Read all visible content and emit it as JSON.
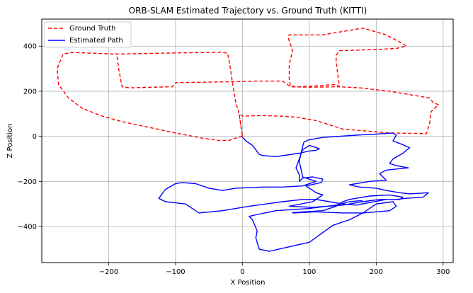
{
  "chart_data": {
    "type": "line",
    "title": "ORB-SLAM Estimated Trajectory vs. Ground Truth (KITTI)",
    "xlabel": "X Position",
    "ylabel": "Z Position",
    "xlim": [
      -300,
      315
    ],
    "ylim": [
      -560,
      520
    ],
    "xticks": [
      -200,
      -100,
      0,
      100,
      200,
      300
    ],
    "yticks": [
      -400,
      -200,
      0,
      200,
      400
    ],
    "grid": true,
    "legend_position": "top-left",
    "series": [
      {
        "name": "Ground Truth",
        "color": "#ff0000",
        "style": "dashed",
        "points": [
          [
            0,
            0
          ],
          [
            -7,
            -5
          ],
          [
            -20,
            -18
          ],
          [
            -35,
            -18
          ],
          [
            -60,
            -8
          ],
          [
            -100,
            15
          ],
          [
            -140,
            40
          ],
          [
            -180,
            65
          ],
          [
            -210,
            90
          ],
          [
            -240,
            125
          ],
          [
            -260,
            170
          ],
          [
            -275,
            230
          ],
          [
            -277,
            300
          ],
          [
            -268,
            365
          ],
          [
            -255,
            372
          ],
          [
            -190,
            365
          ],
          [
            -100,
            370
          ],
          [
            -30,
            373
          ],
          [
            -22,
            368
          ],
          [
            -18,
            300
          ],
          [
            -15,
            240
          ],
          [
            -10,
            150
          ],
          [
            -5,
            100
          ],
          [
            0,
            0
          ],
          [
            -5,
            100
          ],
          [
            0,
            90
          ],
          [
            30,
            92
          ],
          [
            55,
            90
          ],
          [
            80,
            85
          ],
          [
            110,
            70
          ],
          [
            150,
            32
          ],
          [
            220,
            15
          ],
          [
            275,
            12
          ],
          [
            280,
            60
          ],
          [
            282,
            110
          ],
          [
            293,
            140
          ],
          [
            285,
            150
          ],
          [
            280,
            170
          ],
          [
            220,
            200
          ],
          [
            175,
            215
          ],
          [
            145,
            220
          ],
          [
            140,
            230
          ],
          [
            100,
            222
          ],
          [
            85,
            220
          ],
          [
            72,
            222
          ],
          [
            70,
            250
          ],
          [
            70,
            320
          ],
          [
            75,
            380
          ],
          [
            68,
            440
          ],
          [
            70,
            450
          ],
          [
            120,
            450
          ],
          [
            180,
            480
          ],
          [
            215,
            450
          ],
          [
            240,
            410
          ],
          [
            245,
            400
          ],
          [
            230,
            390
          ],
          [
            200,
            385
          ],
          [
            145,
            380
          ],
          [
            140,
            360
          ],
          [
            140,
            330
          ],
          [
            145,
            220
          ],
          [
            100,
            218
          ],
          [
            72,
            220
          ],
          [
            60,
            245
          ],
          [
            20,
            245
          ],
          [
            -15,
            242
          ],
          [
            -100,
            238
          ],
          [
            -105,
            220
          ],
          [
            -170,
            215
          ],
          [
            -180,
            220
          ],
          [
            -185,
            300
          ],
          [
            -188,
            365
          ],
          [
            -190,
            367
          ]
        ]
      },
      {
        "name": "Estimated Path",
        "color": "#0000ff",
        "style": "solid",
        "points": [
          [
            0,
            -2
          ],
          [
            5,
            -20
          ],
          [
            15,
            -40
          ],
          [
            20,
            -60
          ],
          [
            25,
            -80
          ],
          [
            30,
            -85
          ],
          [
            50,
            -90
          ],
          [
            85,
            -75
          ],
          [
            100,
            -65
          ],
          [
            110,
            -62
          ],
          [
            115,
            -55
          ],
          [
            100,
            -40
          ],
          [
            90,
            -60
          ],
          [
            85,
            -100
          ],
          [
            80,
            -140
          ],
          [
            85,
            -170
          ],
          [
            85,
            -200
          ],
          [
            90,
            -185
          ],
          [
            105,
            -180
          ],
          [
            120,
            -190
          ],
          [
            118,
            -205
          ],
          [
            95,
            -220
          ],
          [
            110,
            -250
          ],
          [
            120,
            -260
          ],
          [
            105,
            -290
          ],
          [
            70,
            -310
          ],
          [
            105,
            -315
          ],
          [
            150,
            -305
          ],
          [
            180,
            -290
          ],
          [
            205,
            -280
          ],
          [
            230,
            -280
          ],
          [
            245,
            -275
          ],
          [
            270,
            -270
          ],
          [
            278,
            -250
          ],
          [
            250,
            -255
          ],
          [
            235,
            -250
          ],
          [
            215,
            -240
          ],
          [
            200,
            -230
          ],
          [
            175,
            -225
          ],
          [
            160,
            -215
          ],
          [
            190,
            -200
          ],
          [
            215,
            -195
          ],
          [
            210,
            -180
          ],
          [
            205,
            -165
          ],
          [
            215,
            -150
          ],
          [
            230,
            -145
          ],
          [
            248,
            -140
          ],
          [
            230,
            -130
          ],
          [
            220,
            -120
          ],
          [
            225,
            -100
          ],
          [
            240,
            -75
          ],
          [
            250,
            -50
          ],
          [
            238,
            -35
          ],
          [
            225,
            -20
          ],
          [
            230,
            5
          ],
          [
            225,
            15
          ],
          [
            200,
            10
          ],
          [
            170,
            5
          ],
          [
            120,
            -5
          ],
          [
            100,
            -15
          ],
          [
            92,
            -25
          ],
          [
            90,
            -45
          ],
          [
            85,
            -110
          ],
          [
            90,
            -180
          ],
          [
            110,
            -200
          ],
          [
            90,
            -220
          ],
          [
            60,
            -225
          ],
          [
            30,
            -225
          ],
          [
            -10,
            -230
          ],
          [
            -30,
            -240
          ],
          [
            -50,
            -230
          ],
          [
            -70,
            -210
          ],
          [
            -90,
            -205
          ],
          [
            -100,
            -210
          ],
          [
            -115,
            -235
          ],
          [
            -125,
            -275
          ],
          [
            -115,
            -290
          ],
          [
            -100,
            -295
          ],
          [
            -85,
            -300
          ],
          [
            -65,
            -340
          ],
          [
            -30,
            -330
          ],
          [
            10,
            -310
          ],
          [
            60,
            -290
          ],
          [
            90,
            -280
          ],
          [
            110,
            -280
          ],
          [
            130,
            -290
          ],
          [
            150,
            -300
          ],
          [
            170,
            -305
          ],
          [
            215,
            -280
          ],
          [
            235,
            -280
          ],
          [
            240,
            -270
          ],
          [
            220,
            -260
          ],
          [
            190,
            -265
          ],
          [
            160,
            -280
          ],
          [
            150,
            -290
          ],
          [
            140,
            -310
          ],
          [
            120,
            -330
          ],
          [
            75,
            -338
          ],
          [
            75,
            -340
          ],
          [
            110,
            -335
          ],
          [
            150,
            -340
          ],
          [
            180,
            -340
          ],
          [
            220,
            -330
          ],
          [
            230,
            -310
          ],
          [
            225,
            -290
          ],
          [
            200,
            -300
          ],
          [
            180,
            -340
          ],
          [
            160,
            -370
          ],
          [
            135,
            -395
          ],
          [
            100,
            -470
          ],
          [
            70,
            -490
          ],
          [
            40,
            -510
          ],
          [
            25,
            -500
          ],
          [
            20,
            -450
          ],
          [
            22,
            -420
          ],
          [
            15,
            -370
          ],
          [
            10,
            -355
          ],
          [
            25,
            -345
          ],
          [
            50,
            -330
          ],
          [
            100,
            -320
          ],
          [
            140,
            -305
          ],
          [
            160,
            -290
          ],
          [
            178,
            -285
          ],
          [
            180,
            -290
          ]
        ]
      }
    ]
  }
}
